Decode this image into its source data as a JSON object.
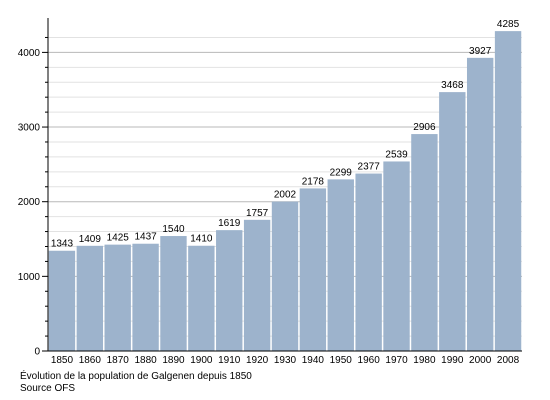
{
  "chart_data": {
    "type": "bar",
    "categories": [
      "1850",
      "1860",
      "1870",
      "1880",
      "1890",
      "1900",
      "1910",
      "1920",
      "1930",
      "1940",
      "1950",
      "1960",
      "1970",
      "1980",
      "1990",
      "2000",
      "2008"
    ],
    "values": [
      1343,
      1409,
      1425,
      1437,
      1540,
      1410,
      1619,
      1757,
      2002,
      2178,
      2299,
      2377,
      2539,
      2906,
      3468,
      3927,
      4285
    ],
    "title": "Évolution de la population de Galgenen depuis 1850",
    "source": "Source OFS",
    "xlabel": "",
    "ylabel": "",
    "ylim": [
      0,
      4300
    ],
    "yticks": [
      0,
      1000,
      2000,
      3000,
      4000
    ],
    "minor_tick_step": 200,
    "grid": true,
    "legend": "none",
    "colors": {
      "bar": "#9db3cc",
      "grid_major": "#b8b8b8",
      "grid_minor": "#e2e2e2",
      "axis": "#000000"
    }
  }
}
